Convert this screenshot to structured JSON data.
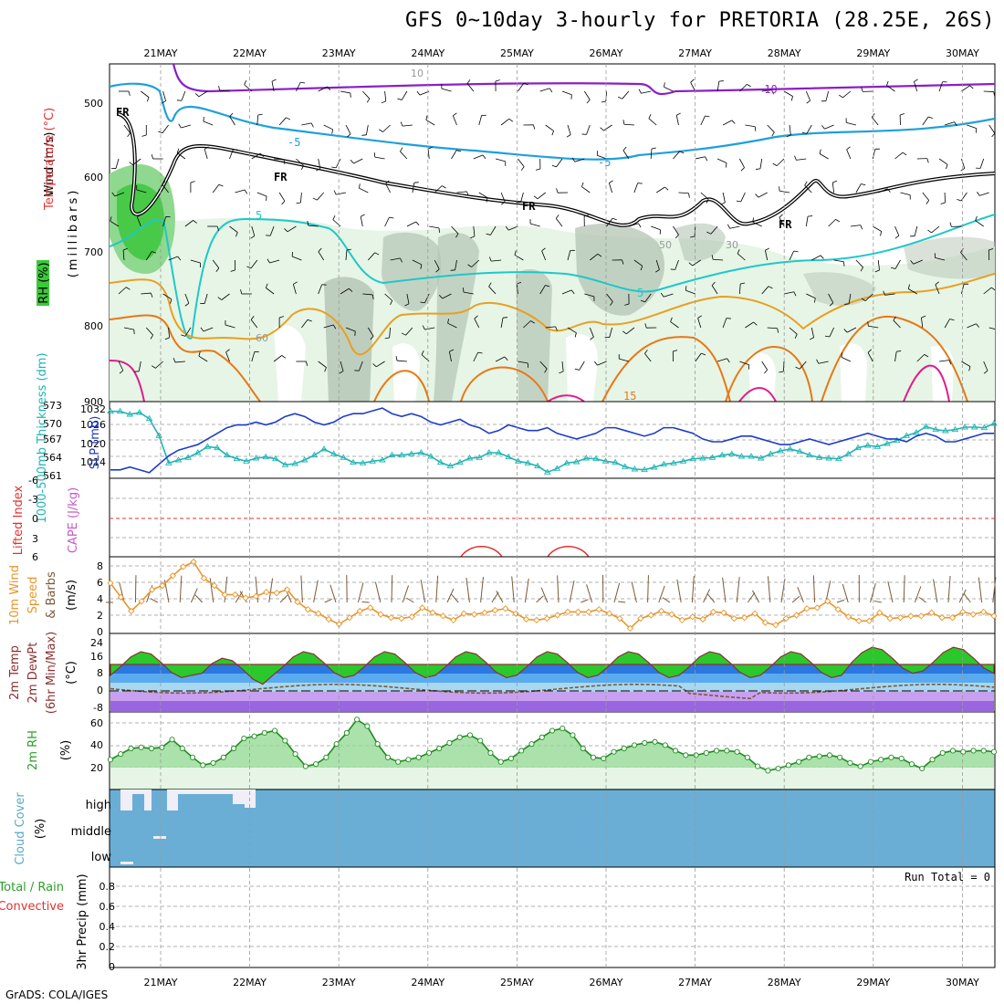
{
  "title": "GFS 0~10day 3-hourly for PRETORIA (28.25E, 26S)",
  "footer": "GrADS: COLA/IGES",
  "run_total": "Run Total = 0",
  "dates": [
    "21MAY",
    "22MAY",
    "23MAY",
    "24MAY",
    "25MAY",
    "26MAY",
    "27MAY",
    "28MAY",
    "29MAY",
    "30MAY"
  ],
  "colors": {
    "rh_dark": "#3cc83c",
    "rh_mid": "#8fd88f",
    "rh_light": "#e6f5e6",
    "rh_gray": "#b4c4b4",
    "temp_m10": "#8a1fc8",
    "temp_m5": "#1ea0dc",
    "temp_5": "#1ec8c8",
    "temp_10": "#e8a020",
    "temp_15": "#e87814",
    "temp_20": "#e01e8c",
    "freezing": "#000000",
    "slp": "#1e3cc8",
    "thickness": "#20b4b4",
    "lifted_index": "#e03232",
    "wind_speed": "#e8962a",
    "barb": "#7a5a3a",
    "cloud": "#6aaed6",
    "cloud_clear": "#f0eef6",
    "rh2m_line": "#1e8c1e"
  },
  "panels": {
    "upper_air": {
      "ylabel_wind": "Wind (m/s)",
      "ylabel_temp": "Temperature (°C)",
      "ylabel_rh": "RH (%)",
      "ylabel_units": "(millibars)",
      "yticks": [
        "500",
        "600",
        "700",
        "800",
        "900"
      ],
      "contour_labels": [
        "-10",
        "-5",
        "-5",
        "5",
        "5",
        "FR",
        "FR",
        "FR",
        "FR",
        "15",
        "10",
        "30",
        "50",
        "60"
      ]
    },
    "slp_thickness": {
      "ylabel_thickness": "1000-500mb Thickness (dm)",
      "ylabel_slp": "SLP (mb)",
      "yticks_thickness": [
        "573",
        "570",
        "567",
        "564",
        "561"
      ],
      "yticks_slp": [
        "1032",
        "1026",
        "1020",
        "1014"
      ]
    },
    "stability": {
      "ylabel_li": "Lifted Index",
      "ylabel_cape": "CAPE (J/kg)",
      "yticks": [
        "-6",
        "-3",
        "0",
        "3",
        "6"
      ]
    },
    "wind10m": {
      "ylabel_a": "10m Wind",
      "ylabel_b": "Speed",
      "ylabel_c": "& Barbs",
      "ylabel_units": "(m/s)",
      "yticks": [
        "8",
        "6",
        "4",
        "2",
        "0"
      ]
    },
    "temp2m": {
      "ylabel_a": "2m Temp",
      "ylabel_b": "2m DewPt",
      "ylabel_c": "(6hr Min/Max)",
      "ylabel_units": "(°C)",
      "yticks": [
        "24",
        "16",
        "8",
        "0",
        "-8"
      ]
    },
    "rh2m": {
      "ylabel": "2m RH",
      "ylabel_units": "(%)",
      "yticks": [
        "60",
        "40",
        "20"
      ]
    },
    "cloud": {
      "ylabel": "Cloud Cover",
      "ylabel_units": "(%)",
      "levels": [
        "high",
        "middle",
        "low"
      ]
    },
    "precip": {
      "ylabel_a": "Total / Rain",
      "ylabel_b": "Convective",
      "ylabel_units": "3hr Precip (mm)",
      "yticks": [
        "0.8",
        "0.6",
        "0.4",
        "0.2",
        "0"
      ]
    }
  },
  "chart_data": [
    {
      "type": "line",
      "panel": "SLP and 1000-500mb thickness",
      "x_unit": "3-hourly steps from 20 May 12Z",
      "series": [
        {
          "name": "SLP (mb)",
          "values": [
            1011,
            1011,
            1012,
            1011,
            1010,
            1013,
            1016,
            1018,
            1019,
            1020,
            1022,
            1024,
            1026,
            1027,
            1027,
            1028,
            1027,
            1028,
            1030,
            1031,
            1030,
            1028,
            1027,
            1028,
            1030,
            1031,
            1031,
            1032,
            1033,
            1031,
            1030,
            1031,
            1030,
            1028,
            1027,
            1028,
            1029,
            1027,
            1026,
            1024,
            1025,
            1027,
            1026,
            1025,
            1025,
            1026,
            1024,
            1023,
            1022,
            1023,
            1024,
            1026,
            1026,
            1025,
            1024,
            1023,
            1024,
            1026,
            1026,
            1025,
            1024,
            1022,
            1021,
            1021,
            1022,
            1023,
            1023,
            1022,
            1021,
            1020,
            1020,
            1021,
            1022,
            1021,
            1020,
            1021,
            1022,
            1023,
            1024,
            1023,
            1022,
            1022,
            1021,
            1023,
            1024,
            1023,
            1021,
            1021,
            1022,
            1023,
            1024,
            1024
          ]
        },
        {
          "name": "1000-500mb Thickness (dm)",
          "values": [
            572,
            572,
            571.5,
            571.8,
            570.8,
            568,
            563.5,
            564,
            564.4,
            565.2,
            566.2,
            566,
            564.8,
            564.2,
            563.8,
            564.3,
            564.5,
            564.2,
            563.2,
            563.4,
            564,
            564.8,
            565.8,
            565,
            564.4,
            563.6,
            563.5,
            563.8,
            564,
            564.8,
            564.8,
            565,
            565.2,
            564.6,
            563.6,
            563,
            563.6,
            564.3,
            564.4,
            565.2,
            565.2,
            564.5,
            563.8,
            563.5,
            563,
            562,
            562.6,
            563.5,
            563.7,
            564.3,
            564.2,
            563.8,
            563.6,
            562.9,
            562.5,
            562.4,
            562.8,
            563.3,
            563.5,
            563.8,
            564.2,
            564.3,
            564.4,
            564.8,
            565,
            564.6,
            564.6,
            564.3,
            565,
            565.5,
            565.8,
            565.4,
            564.8,
            564.4,
            564.3,
            564.2,
            565,
            566,
            566.4,
            566.2,
            566.7,
            567.2,
            568,
            568.5,
            569.5,
            569,
            568.8,
            569,
            569.4,
            569.4,
            569.3,
            570
          ]
        }
      ]
    },
    {
      "type": "line",
      "panel": "10m wind speed (m/s)",
      "series": [
        {
          "name": "Speed",
          "values": [
            5.9,
            4.2,
            2.5,
            3.7,
            5.1,
            5.6,
            6.8,
            7.9,
            8.5,
            6.5,
            5.6,
            4.5,
            4.5,
            4.1,
            4.3,
            4.8,
            4.7,
            5.1,
            3.6,
            2.7,
            2.2,
            1.5,
            0.9,
            1.7,
            2.5,
            2.9,
            2.1,
            1.7,
            1.6,
            1.8,
            2.9,
            2.3,
            1.9,
            1.4,
            2.2,
            2.1,
            2.3,
            2.6,
            2.8,
            2.2,
            1.5,
            1.4,
            1.6,
            2,
            2.4,
            2.4,
            2.4,
            2.7,
            2.2,
            1.6,
            0.4,
            1.6,
            2,
            2.5,
            2.1,
            1.4,
            1.8,
            1.5,
            2.4,
            2.3,
            1.6,
            1.7,
            2.2,
            1.1,
            0.8,
            1.6,
            2,
            2.8,
            2.9,
            3.7,
            2.7,
            1.8,
            1.3,
            1.3,
            2.3,
            1.6,
            1.7,
            1.9,
            1.9,
            2.3,
            1.7,
            1.7,
            2.4,
            2.1,
            2.4,
            1.9
          ]
        }
      ]
    },
    {
      "type": "area",
      "panel": "2m RH (%)",
      "series": [
        {
          "name": "2m RH",
          "values": [
            28,
            33,
            38,
            39,
            38,
            39,
            46,
            38,
            30,
            23,
            25,
            30,
            38,
            47,
            49,
            52,
            54,
            45,
            33,
            22,
            24,
            30,
            42,
            52,
            64,
            58,
            42,
            30,
            26,
            28,
            30,
            34,
            38,
            43,
            48,
            50,
            45,
            34,
            26,
            29,
            36,
            42,
            48,
            54,
            56,
            50,
            38,
            30,
            29,
            35,
            38,
            41,
            43,
            44,
            41,
            36,
            32,
            32,
            34,
            36,
            36,
            35,
            30,
            22,
            18,
            20,
            23,
            26,
            30,
            31,
            32,
            30,
            25,
            22,
            26,
            28,
            30,
            29,
            24,
            20,
            28,
            34,
            36,
            35,
            36,
            36,
            35
          ]
        }
      ]
    }
  ]
}
